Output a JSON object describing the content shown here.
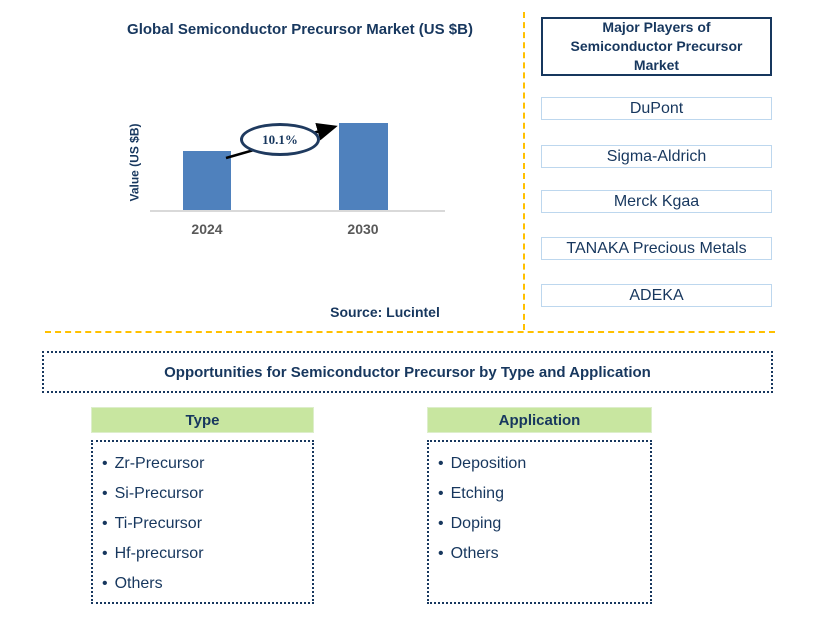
{
  "chart_data": {
    "type": "bar",
    "title": "Global Semiconductor Precursor Market (US $B)",
    "ylabel": "Value (US $B)",
    "xlabel": "",
    "categories": [
      "2024",
      "2030"
    ],
    "values_labeled": false,
    "relative_heights": [
      0.68,
      1.0
    ],
    "annotation": "10.1%",
    "source": "Source: Lucintel",
    "bar_color": "#4F81BD",
    "grid": false,
    "legend": false
  },
  "players_panel": {
    "title": "Major Players of Semiconductor Precursor Market",
    "players": [
      "DuPont",
      "Sigma-Aldrich",
      "Merck Kgaa",
      "TANAKA Precious Metals",
      "ADEKA"
    ]
  },
  "opportunities": {
    "banner": "Opportunities for Semiconductor Precursor by Type and Application",
    "type_column": {
      "header": "Type",
      "items": [
        "Zr-Precursor",
        "Si-Precursor",
        "Ti-Precursor",
        "Hf-precursor",
        "Others"
      ]
    },
    "application_column": {
      "header": "Application",
      "items": [
        "Deposition",
        "Etching",
        "Doping",
        "Others"
      ]
    }
  },
  "colors": {
    "navy_text": "#17375E",
    "bar_blue": "#4F81BD",
    "separator_yellow": "#FFC000",
    "header_green": "#C8E6A0",
    "player_box_border": "#BDD7EE",
    "axis_gray": "#D9D9D9",
    "x_label_gray": "#595959"
  }
}
